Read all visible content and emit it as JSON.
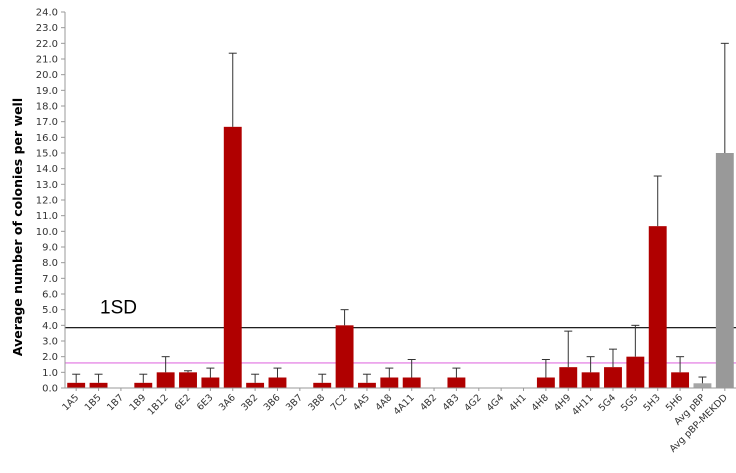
{
  "chart_data": {
    "type": "bar",
    "title": "",
    "xlabel": "",
    "ylabel": "Average number of colonies per well",
    "ylim": [
      0,
      24
    ],
    "ytick_step": 1,
    "categories": [
      "1A5",
      "1B5",
      "1B7",
      "1B9",
      "1B12",
      "6E2",
      "6E3",
      "3A6",
      "3B2",
      "3B6",
      "3B7",
      "3B8",
      "7C2",
      "4A5",
      "4A8",
      "4A11",
      "4B2",
      "4B3",
      "4G2",
      "4G4",
      "4H1",
      "4H8",
      "4H9",
      "4H11",
      "5G4",
      "5G5",
      "5H3",
      "5H6",
      "Avg pBP",
      "Avg pBP-MEKDD"
    ],
    "values": [
      0.33,
      0.33,
      0,
      0.33,
      1.0,
      1.0,
      0.67,
      16.67,
      0.33,
      0.67,
      0,
      0.33,
      4.0,
      0.33,
      0.67,
      0.67,
      0,
      0.67,
      0,
      0,
      0,
      0.67,
      1.33,
      1.0,
      1.33,
      2.0,
      10.33,
      1.0,
      0.3,
      15.0
    ],
    "errors": [
      0.55,
      0.55,
      0,
      0.55,
      1.0,
      0.1,
      0.6,
      4.7,
      0.55,
      0.6,
      0,
      0.55,
      1.0,
      0.55,
      0.6,
      1.15,
      0,
      0.6,
      0,
      0,
      0,
      1.15,
      2.3,
      1.0,
      1.15,
      2.0,
      3.2,
      1.0,
      0.4,
      7.0
    ],
    "bar_colors": [
      "#b00000",
      "#b00000",
      "#b00000",
      "#b00000",
      "#b00000",
      "#b00000",
      "#b00000",
      "#b00000",
      "#b00000",
      "#b00000",
      "#b00000",
      "#b00000",
      "#b00000",
      "#b00000",
      "#b00000",
      "#b00000",
      "#b00000",
      "#b00000",
      "#b00000",
      "#b00000",
      "#b00000",
      "#b00000",
      "#b00000",
      "#b00000",
      "#b00000",
      "#b00000",
      "#b00000",
      "#b00000",
      "#a6a6a6",
      "#999999"
    ],
    "reference_lines": [
      {
        "label": "1SD",
        "value": 3.85,
        "color": "#000000"
      },
      {
        "label": "",
        "value": 1.6,
        "color": "#e070e0"
      }
    ],
    "grid": false,
    "legend": "none"
  }
}
